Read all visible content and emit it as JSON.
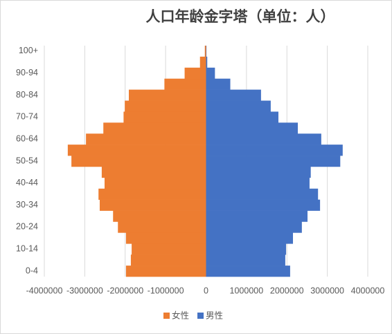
{
  "chart_data": {
    "type": "pyramid",
    "title": "人口年龄金字塔（单位：人）",
    "categories": [
      "0-4",
      null,
      "10-14",
      null,
      "20-24",
      null,
      "30-34",
      null,
      "40-44",
      null,
      "50-54",
      null,
      "60-64",
      null,
      "70-74",
      null,
      "80-84",
      null,
      "90-94",
      null,
      "100+"
    ],
    "series": [
      {
        "name": "女性",
        "color": "#ed7d31",
        "values": [
          -1980000,
          -1860000,
          -1840000,
          -1980000,
          -2180000,
          -2300000,
          -2630000,
          -2660000,
          -2510000,
          -2580000,
          -3330000,
          -3420000,
          -2970000,
          -2540000,
          -2040000,
          -2010000,
          -1910000,
          -1030000,
          -530000,
          -150000,
          -30000
        ]
      },
      {
        "name": "男性",
        "color": "#4472c4",
        "values": [
          2080000,
          1960000,
          1980000,
          2150000,
          2370000,
          2510000,
          2820000,
          2770000,
          2560000,
          2590000,
          3320000,
          3380000,
          2850000,
          2270000,
          1790000,
          1600000,
          1360000,
          600000,
          220000,
          30000,
          10000
        ]
      }
    ],
    "xlim": [
      -4000000,
      4000000
    ],
    "xticks": [
      -4000000,
      -3000000,
      -2000000,
      -1000000,
      0,
      1000000,
      2000000,
      3000000,
      4000000
    ],
    "grid": true
  }
}
